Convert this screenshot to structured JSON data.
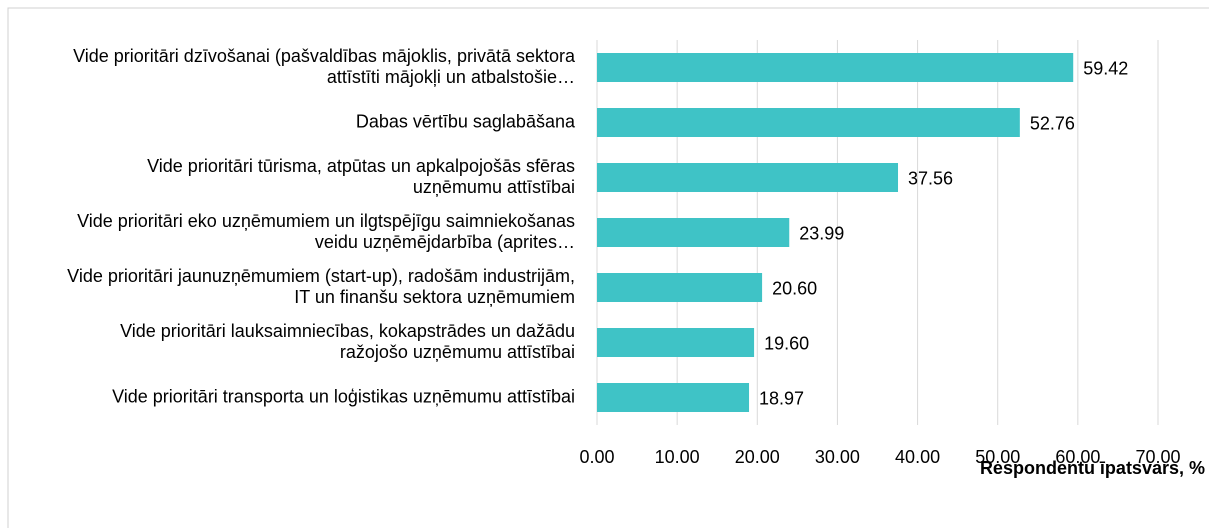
{
  "chart_data": {
    "type": "bar",
    "orientation": "horizontal",
    "x_axis_label": "Respondentu īpatsvars, %",
    "categories": [
      "Vide prioritāri dzīvošanai (pašvaldības mājoklis, privātā sektora attīstīti mājokļi un atbalstošie…",
      "Dabas vērtību saglabāšana",
      "Vide prioritāri tūrisma, atpūtas un apkalpojošās sfēras uzņēmumu attīstībai",
      "Vide prioritāri eko uzņēmumiem un ilgtspējīgu saimniekošanas veidu uzņēmējdarbība (aprites…",
      "Vide prioritāri jaunuzņēmumiem (start-up), radošām industrijām, IT un finanšu sektora uzņēmumiem",
      "Vide prioritāri lauksaimniecības, kokapstrādes un dažādu ražojošo uzņēmumu attīstībai",
      "Vide prioritāri transporta un loģistikas uzņēmumu attīstībai"
    ],
    "values": [
      59.42,
      52.76,
      37.56,
      23.99,
      20.6,
      19.6,
      18.97
    ],
    "value_labels": [
      "59.42",
      "52.76",
      "37.56",
      "23.99",
      "20.60",
      "19.60",
      "18.97"
    ],
    "color": "#3fc3c6",
    "xlim": [
      0,
      70
    ],
    "xticks": [
      {
        "value": 0,
        "label": "0.00"
      },
      {
        "value": 10,
        "label": "10.00"
      },
      {
        "value": 20,
        "label": "20.00"
      },
      {
        "value": 30,
        "label": "30.00"
      },
      {
        "value": 40,
        "label": "40.00"
      },
      {
        "value": 50,
        "label": "50.00"
      },
      {
        "value": 60,
        "label": "60.00"
      },
      {
        "value": 70,
        "label": "70.00"
      }
    ],
    "grid": true
  }
}
